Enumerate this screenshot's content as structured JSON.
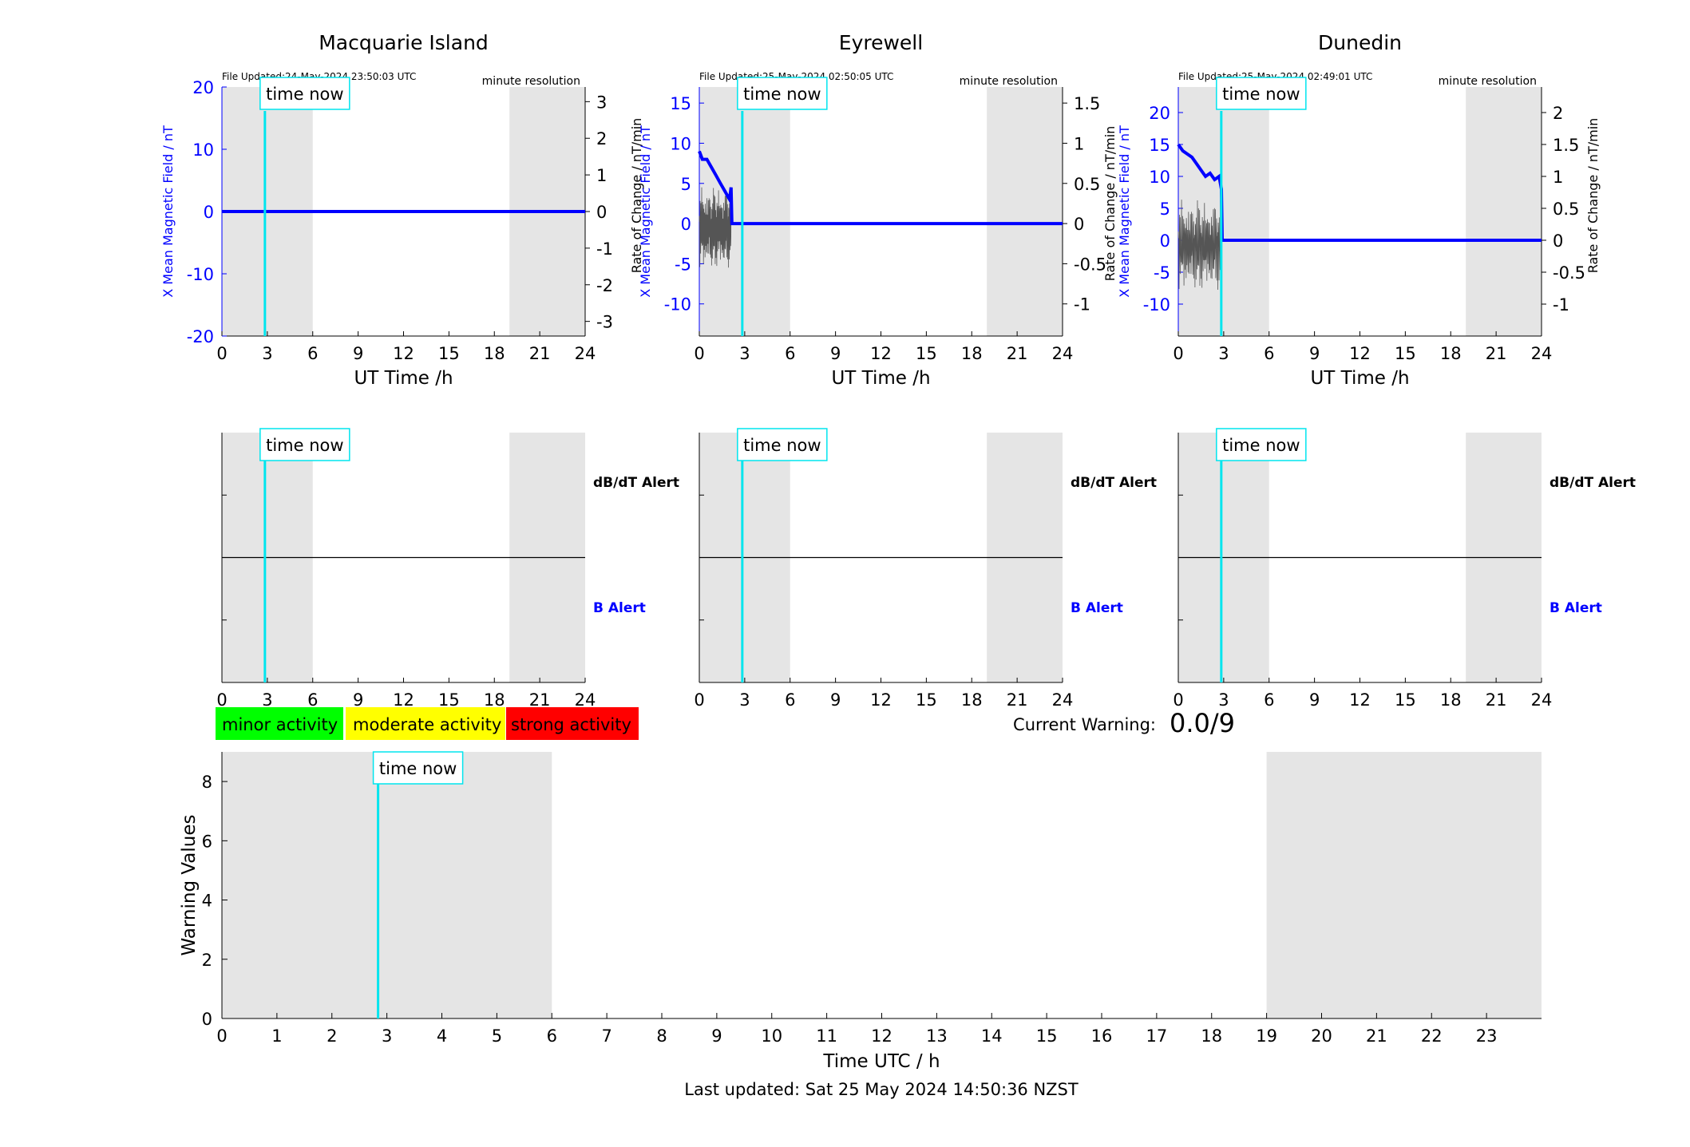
{
  "colors": {
    "field": "#0000ff",
    "rate": "#000000",
    "time_now": "#00e5ee",
    "shade": "#e5e5e5",
    "minor": "#00ff00",
    "moderate": "#ffff00",
    "strong": "#ff0000"
  },
  "time_now_label": "time now",
  "axis_ticks_24h": [
    0,
    3,
    6,
    9,
    12,
    15,
    18,
    21,
    24
  ],
  "shade_periods_h": [
    [
      0,
      6
    ],
    [
      19,
      24
    ]
  ],
  "time_now_h": 2.84,
  "stations": [
    {
      "title": "Macquarie Island",
      "file_updated": "File Updated:24-May-2024 23:50:03 UTC",
      "resolution": "minute resolution",
      "ylabel_left": "X Mean Magnetic Field / nT",
      "ylabel_right": "Rate of Change / nT/min",
      "xlabel": "UT Time /h",
      "left_ylim": [
        -20,
        20
      ],
      "left_ticks": [
        -20,
        -10,
        0,
        10,
        20
      ],
      "right_ylim": [
        -3.4,
        3.4
      ],
      "right_ticks": [
        "3",
        "2",
        "1",
        "0",
        "-1",
        "-2",
        "-3"
      ],
      "right_tick_values": [
        3,
        2,
        1,
        0,
        -1,
        -2,
        -3
      ],
      "data_until_h": 0,
      "field_start": 0
    },
    {
      "title": "Eyrewell",
      "file_updated": "File Updated:25-May-2024 02:50:05 UTC",
      "resolution": "minute resolution",
      "ylabel_left": "X Mean Magnetic Field / nT",
      "ylabel_right": "",
      "xlabel": "UT Time /h",
      "left_ylim": [
        -14,
        17
      ],
      "left_ticks": [
        -10,
        -5,
        0,
        5,
        10,
        15
      ],
      "right_ylim": [
        -1.4,
        1.7
      ],
      "right_ticks": [
        "1.5",
        "1",
        "0.5",
        "0",
        "-0.5",
        "-1"
      ],
      "right_tick_values": [
        1.5,
        1,
        0.5,
        0,
        -0.5,
        -1
      ],
      "data_until_h": 2.1,
      "field_start": 9
    },
    {
      "title": "Dunedin",
      "file_updated": "File Updated:25-May-2024 02:49:01 UTC",
      "resolution": "minute resolution",
      "ylabel_left": "X Mean Magnetic Field / nT",
      "ylabel_right": "Rate of Change / nT/min",
      "ylabel_left_extra": "Rate of Change / nT/min",
      "xlabel": "UT Time /h",
      "left_ylim": [
        -15,
        24
      ],
      "left_ticks": [
        -10,
        -5,
        0,
        5,
        10,
        15,
        20
      ],
      "right_ylim": [
        -1.5,
        2.4
      ],
      "right_ticks": [
        "2",
        "1.5",
        "1",
        "0.5",
        "0",
        "-0.5",
        "-1"
      ],
      "right_tick_values": [
        2,
        1.5,
        1,
        0.5,
        0,
        -0.5,
        -1
      ],
      "data_until_h": 2.85,
      "field_start": 15
    }
  ],
  "alerts": {
    "dbdt_label": "dB/dT Alert",
    "b_label": "B Alert"
  },
  "legend": {
    "minor": "minor activity",
    "moderate": "moderate activity",
    "strong": "strong activity"
  },
  "current_warning": {
    "label": "Current Warning:",
    "value": "0.0/9"
  },
  "warning_chart": {
    "ylabel": "Warning Values",
    "xlabel": "Time UTC / h",
    "ylim": [
      0,
      9
    ],
    "yticks": [
      0,
      2,
      4,
      6,
      8
    ],
    "xlim": [
      0,
      24
    ],
    "xticks": [
      0,
      1,
      2,
      3,
      4,
      5,
      6,
      7,
      8,
      9,
      10,
      11,
      12,
      13,
      14,
      15,
      16,
      17,
      18,
      19,
      20,
      21,
      22,
      23
    ]
  },
  "footer": "Last updated: Sat 25 May 2024 14:50:36 NZST",
  "chart_data": [
    {
      "type": "line",
      "title": "Macquarie Island",
      "xlabel": "UT Time /h",
      "ylabel": "X Mean Magnetic Field / nT",
      "ylabel_right": "Rate of Change / nT/min",
      "xlim": [
        0,
        24
      ],
      "ylim": [
        -20,
        20
      ],
      "series": [
        {
          "x": [
            0,
            24
          ],
          "y": [
            0,
            0
          ]
        }
      ]
    },
    {
      "type": "line",
      "title": "Eyrewell",
      "xlabel": "UT Time /h",
      "ylabel": "X Mean Magnetic Field / nT",
      "xlim": [
        0,
        24
      ],
      "ylim": [
        -14,
        17
      ],
      "series": [
        {
          "x": [
            0,
            0.2,
            0.5,
            0.8,
            1.1,
            1.4,
            1.7,
            2.0,
            2.1,
            2.15,
            24
          ],
          "y": [
            9,
            8,
            8,
            7,
            6,
            5,
            4,
            3,
            4.5,
            0,
            0
          ]
        }
      ]
    },
    {
      "type": "line",
      "title": "Dunedin",
      "xlabel": "UT Time /h",
      "ylabel": "X Mean Magnetic Field / nT",
      "ylabel_right": "Rate of Change / nT/min",
      "xlim": [
        0,
        24
      ],
      "ylim": [
        -15,
        24
      ],
      "series": [
        {
          "x": [
            0,
            0.3,
            0.6,
            0.9,
            1.2,
            1.5,
            1.8,
            2.1,
            2.4,
            2.7,
            2.85,
            2.9,
            24
          ],
          "y": [
            15,
            14,
            13.5,
            13,
            12,
            11,
            10,
            10.5,
            9.5,
            10,
            8,
            0,
            0
          ]
        }
      ]
    },
    {
      "type": "line",
      "xlabel": "Time UTC / h",
      "ylabel": "Warning Values",
      "xlim": [
        0,
        24
      ],
      "ylim": [
        0,
        9
      ],
      "series": []
    }
  ]
}
